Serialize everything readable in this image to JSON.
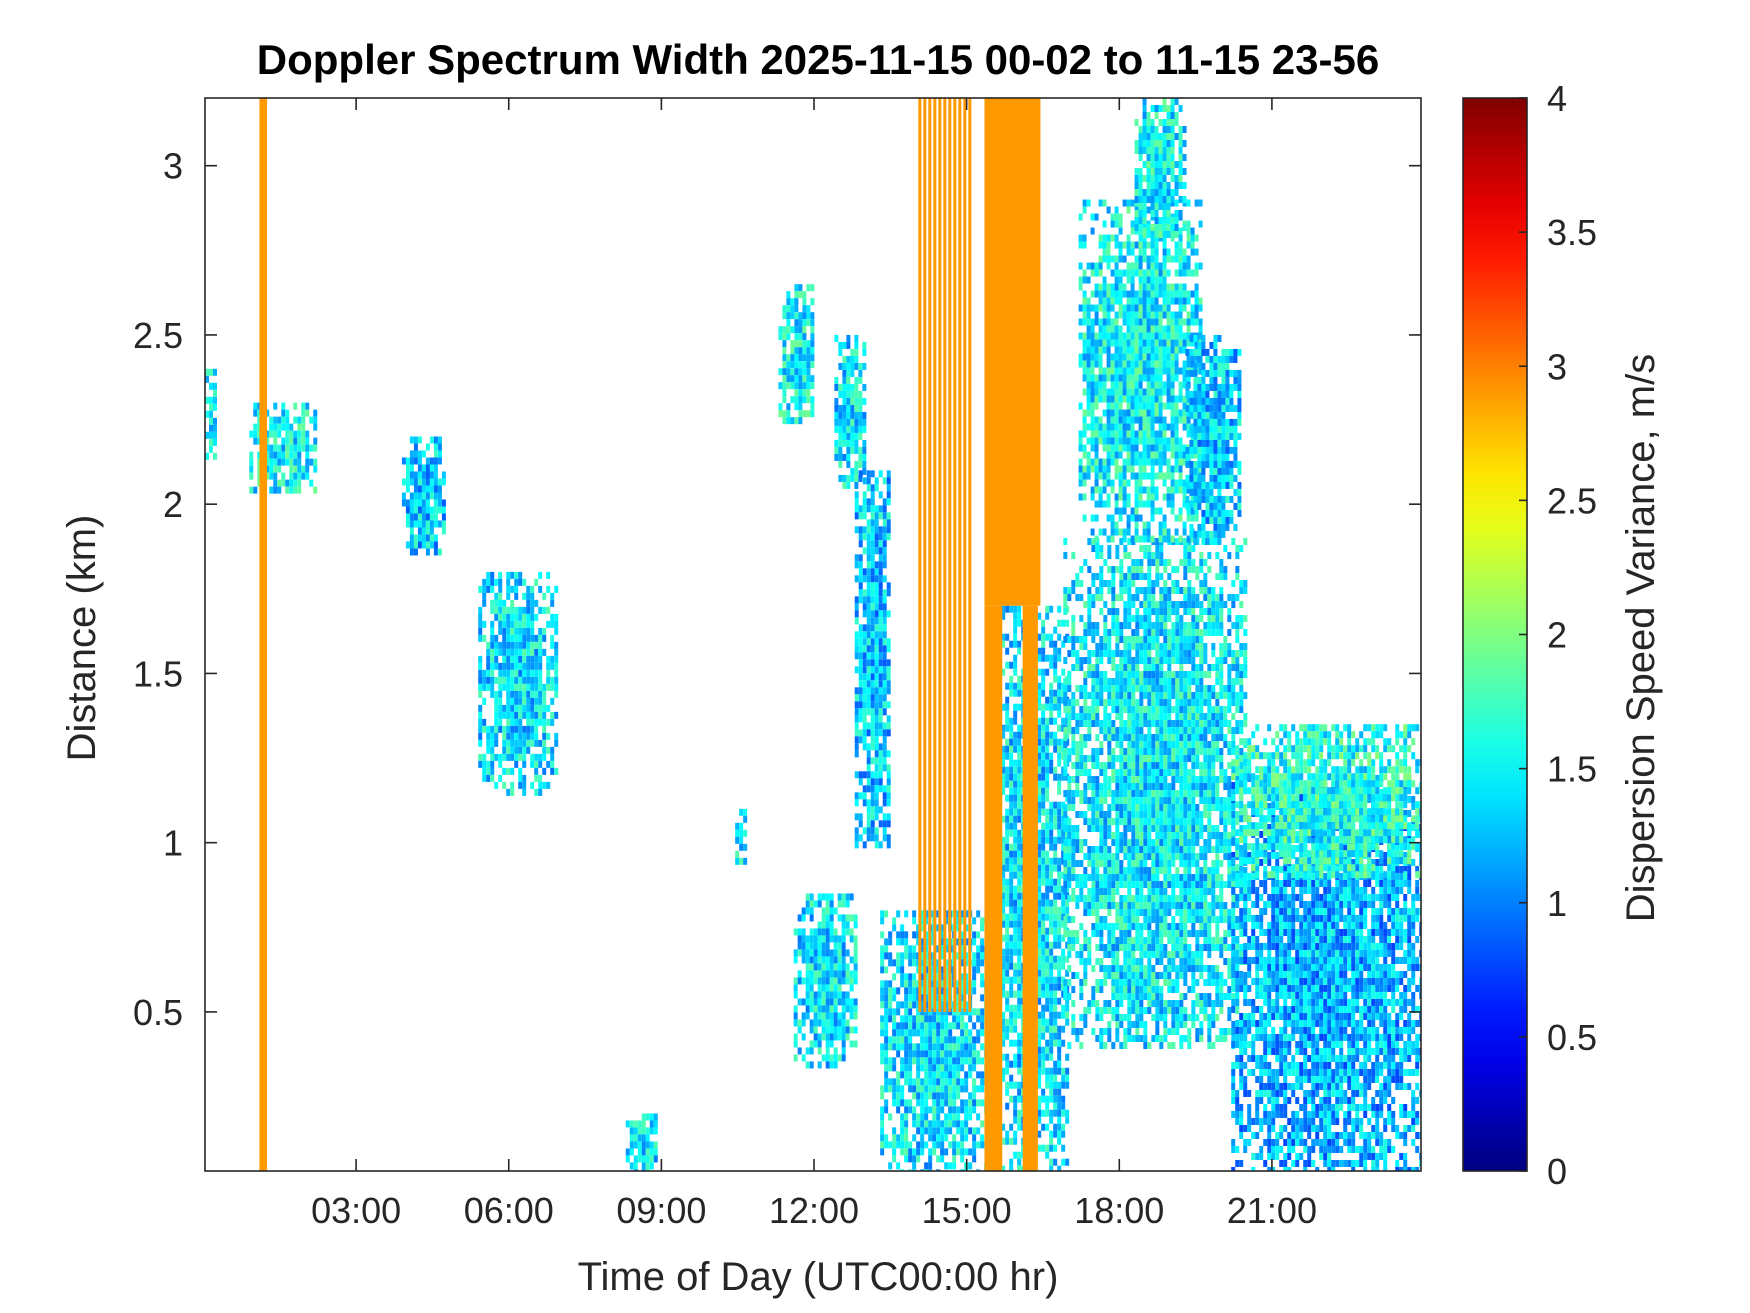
{
  "chart_data": {
    "type": "heatmap",
    "title": "Doppler Spectrum Width 2025-11-15 00-02 to 11-15 23-56",
    "xlabel": "Time of Day (UTC00:00 hr)",
    "ylabel": "Distance (km)",
    "colorbar_label": "Dispersion Speed Variance, m/s",
    "xlim_hours": [
      0.03,
      23.93
    ],
    "ylim_km": [
      0.03,
      3.2
    ],
    "clim": [
      0,
      4
    ],
    "colormap": "jet",
    "x_tick_values": [
      3,
      6,
      9,
      12,
      15,
      18,
      21
    ],
    "x_tick_labels": [
      "03:00",
      "06:00",
      "09:00",
      "12:00",
      "15:00",
      "18:00",
      "21:00"
    ],
    "y_tick_values": [
      0.5,
      1,
      1.5,
      2,
      2.5,
      3
    ],
    "y_tick_labels": [
      "0.5",
      "1",
      "1.5",
      "2",
      "2.5",
      "3"
    ],
    "colorbar_tick_values": [
      0,
      0.5,
      1,
      1.5,
      2,
      2.5,
      3,
      3.5,
      4
    ],
    "colorbar_tick_labels": [
      "0",
      "0.5",
      "1",
      "1.5",
      "2",
      "2.5",
      "3",
      "3.5",
      "4"
    ],
    "grid": false,
    "bands": [
      {
        "x": [
          1.1,
          1.25
        ],
        "y": [
          0.03,
          3.2
        ],
        "value": 2.9
      },
      {
        "x": [
          14.05,
          15.05
        ],
        "y": [
          0.5,
          3.2
        ],
        "value": 2.9,
        "pattern": "striped"
      },
      {
        "x": [
          15.35,
          16.45
        ],
        "y": [
          1.7,
          3.2
        ],
        "value": 2.9
      },
      {
        "x": [
          15.35,
          15.7
        ],
        "y": [
          0.03,
          1.7
        ],
        "value": 2.9
      },
      {
        "x": [
          16.1,
          16.4
        ],
        "y": [
          0.03,
          1.7
        ],
        "value": 2.9
      }
    ],
    "echo_regions": [
      {
        "x": [
          0.03,
          0.2
        ],
        "y": [
          2.15,
          2.4
        ],
        "value": 1.4
      },
      {
        "x": [
          0.9,
          2.2
        ],
        "y": [
          2.05,
          2.3
        ],
        "value": 1.5
      },
      {
        "x": [
          3.9,
          4.7
        ],
        "y": [
          1.85,
          2.2
        ],
        "value": 1.3
      },
      {
        "x": [
          5.4,
          6.9
        ],
        "y": [
          1.15,
          1.8
        ],
        "value": 1.4
      },
      {
        "x": [
          11.3,
          12.0
        ],
        "y": [
          2.25,
          2.65
        ],
        "value": 1.5
      },
      {
        "x": [
          12.4,
          13.0
        ],
        "y": [
          2.05,
          2.5
        ],
        "value": 1.4
      },
      {
        "x": [
          12.8,
          13.5
        ],
        "y": [
          1.0,
          2.1
        ],
        "value": 1.3
      },
      {
        "x": [
          11.6,
          12.8
        ],
        "y": [
          0.35,
          0.85
        ],
        "value": 1.4
      },
      {
        "x": [
          13.3,
          15.4
        ],
        "y": [
          0.03,
          0.8
        ],
        "value": 1.4
      },
      {
        "x": [
          15.6,
          17.0
        ],
        "y": [
          0.03,
          1.7
        ],
        "value": 1.4
      },
      {
        "x": [
          16.9,
          20.5
        ],
        "y": [
          0.4,
          1.9
        ],
        "value": 1.45
      },
      {
        "x": [
          17.2,
          19.6
        ],
        "y": [
          1.9,
          2.9
        ],
        "value": 1.5
      },
      {
        "x": [
          18.3,
          19.3
        ],
        "y": [
          2.8,
          3.2
        ],
        "value": 1.5
      },
      {
        "x": [
          19.3,
          20.4
        ],
        "y": [
          1.9,
          2.5
        ],
        "value": 1.3
      },
      {
        "x": [
          20.2,
          23.93
        ],
        "y": [
          0.03,
          1.2
        ],
        "value": 1.2
      },
      {
        "x": [
          20.2,
          23.93
        ],
        "y": [
          0.9,
          1.35
        ],
        "value": 1.6
      },
      {
        "x": [
          8.3,
          8.9
        ],
        "y": [
          0.03,
          0.2
        ],
        "value": 1.4
      },
      {
        "x": [
          10.45,
          10.65
        ],
        "y": [
          0.95,
          1.1
        ],
        "value": 1.4
      }
    ]
  }
}
